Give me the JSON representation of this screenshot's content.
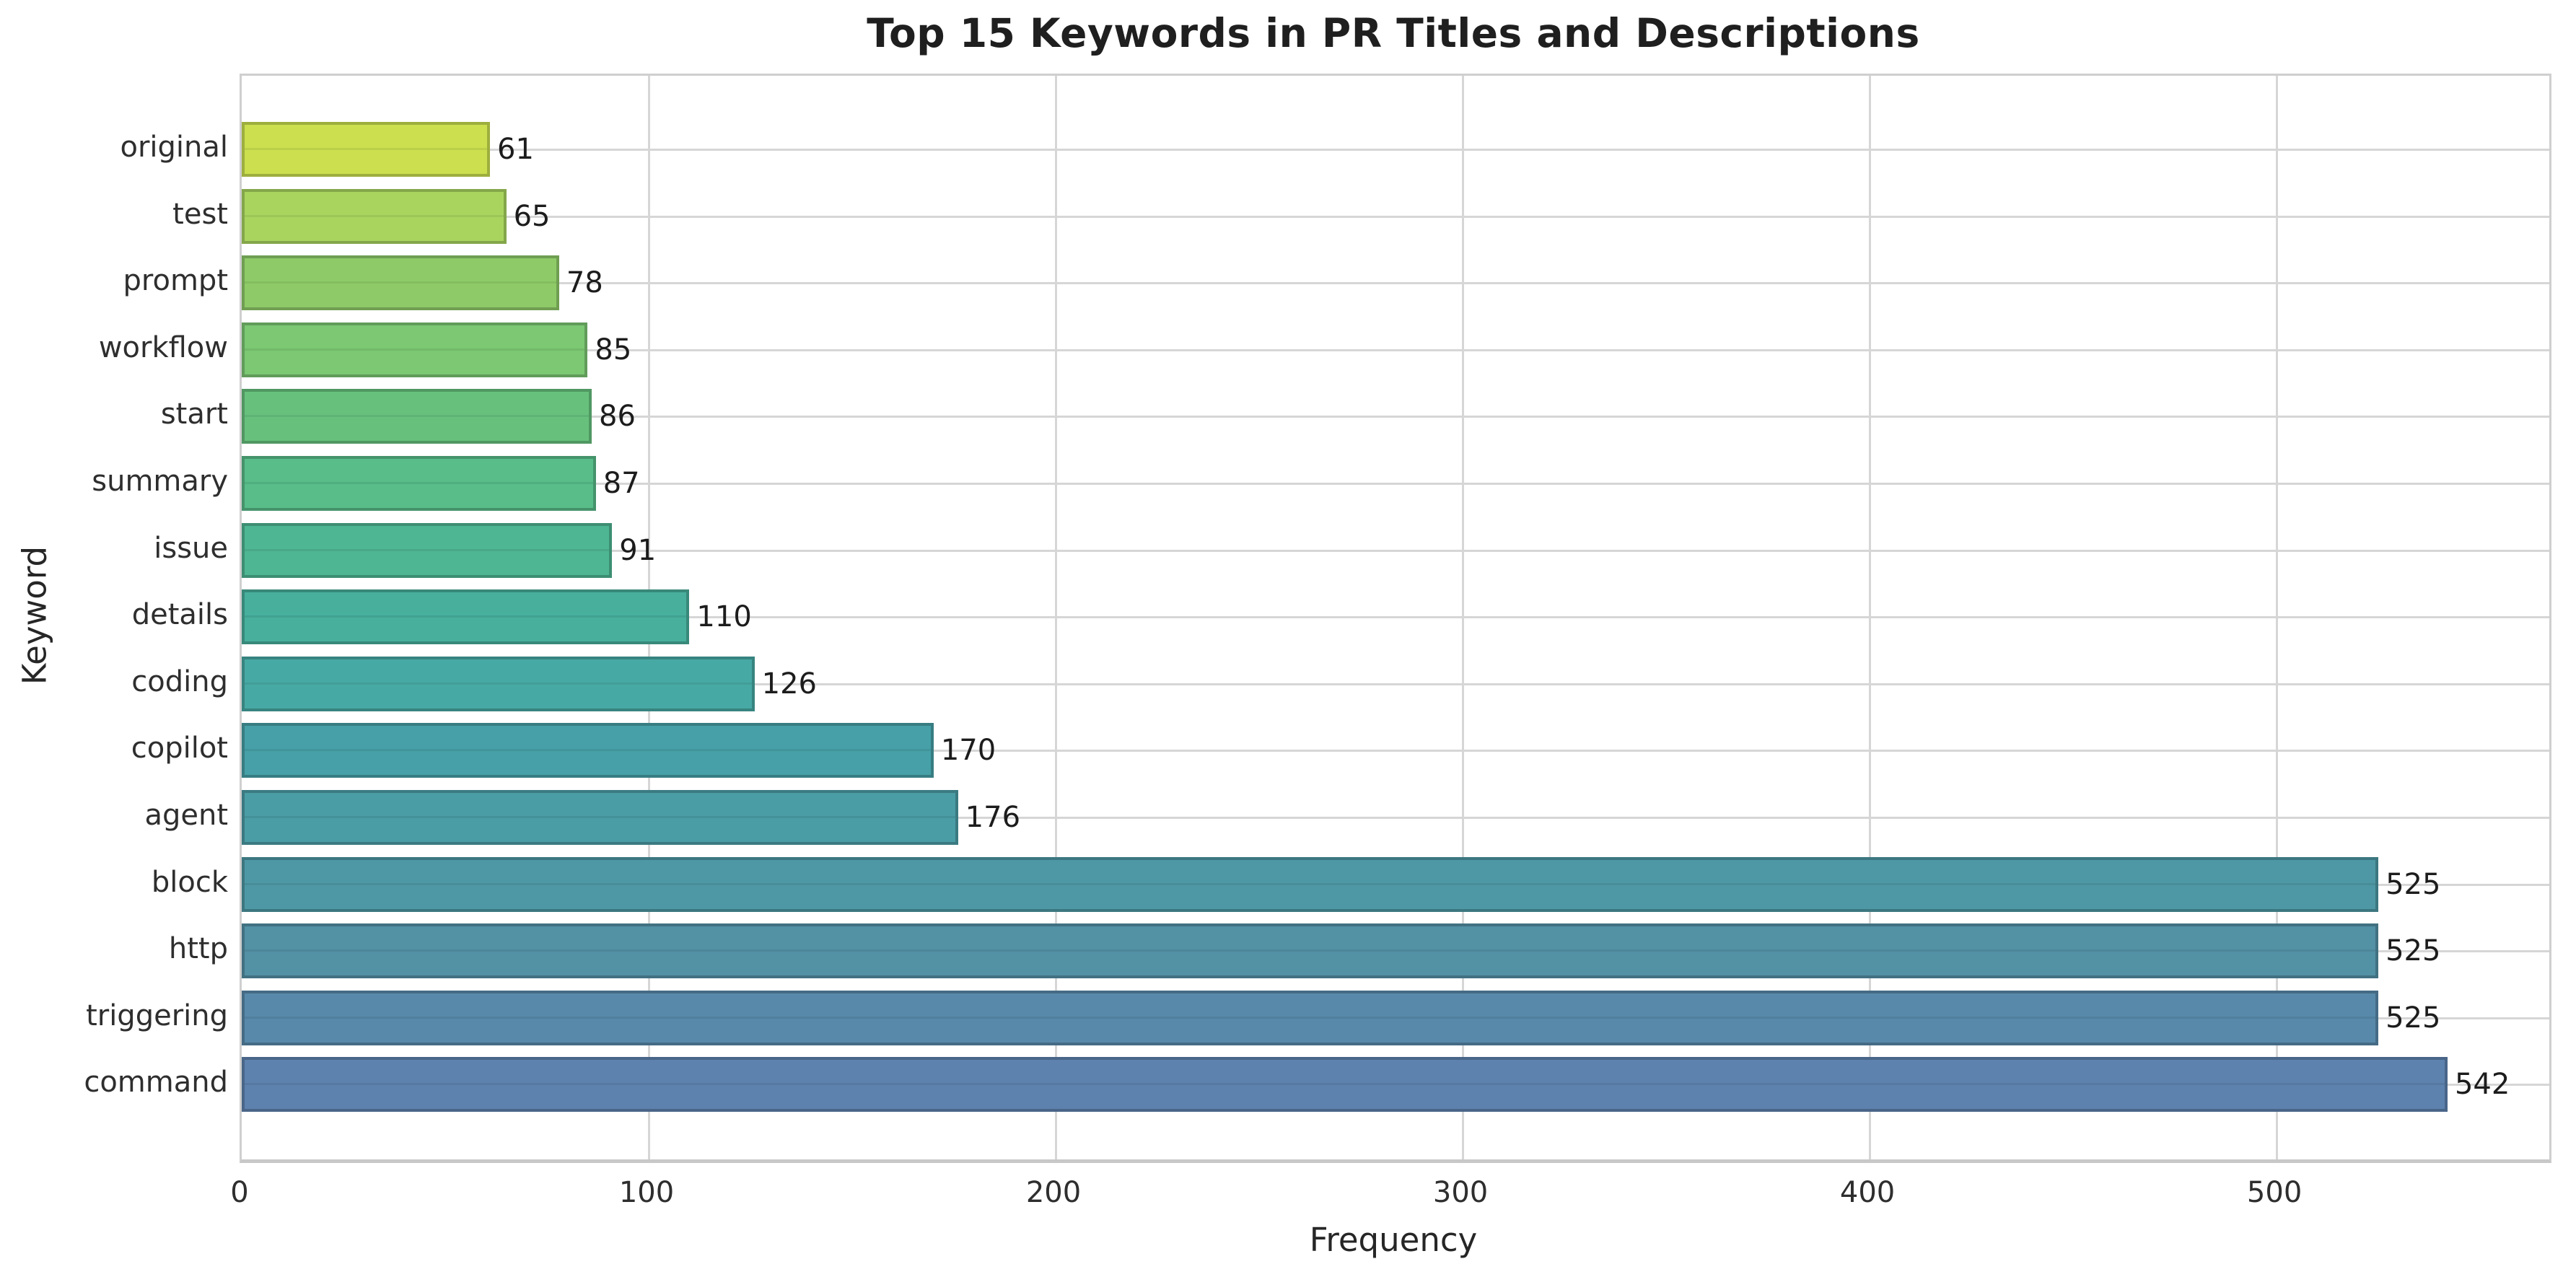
{
  "chart_data": {
    "type": "bar",
    "orientation": "horizontal",
    "title": "Top 15 Keywords in PR Titles and Descriptions",
    "xlabel": "Frequency",
    "ylabel": "Keyword",
    "categories": [
      "original",
      "test",
      "prompt",
      "workflow",
      "start",
      "summary",
      "issue",
      "details",
      "coding",
      "copilot",
      "agent",
      "block",
      "http",
      "triggering",
      "command"
    ],
    "values": [
      61,
      65,
      78,
      85,
      86,
      87,
      91,
      110,
      126,
      170,
      176,
      525,
      525,
      525,
      542
    ],
    "bar_colors": [
      "#cbdf4f",
      "#a9d55f",
      "#8ecb68",
      "#7cc873",
      "#67c17d",
      "#58bd89",
      "#4eb693",
      "#48af9d",
      "#47a9a4",
      "#47a0a7",
      "#4b9da5",
      "#4d98a4",
      "#5391a5",
      "#5889aa",
      "#5e82ae"
    ],
    "xticks": [
      0,
      100,
      200,
      300,
      400,
      500
    ],
    "xlim": [
      0,
      567
    ],
    "grid": true,
    "legend": null,
    "colors": {
      "grid": "#d6d6d6",
      "spine": "#cfcfcf",
      "spine_bottom": "#c8c8c8",
      "title_text": "#1f1f1f",
      "tick_text": "#2e2e2e",
      "axis_label_text": "#262626",
      "value_label_text": "#1c1c1c",
      "background": "#ffffff"
    }
  }
}
